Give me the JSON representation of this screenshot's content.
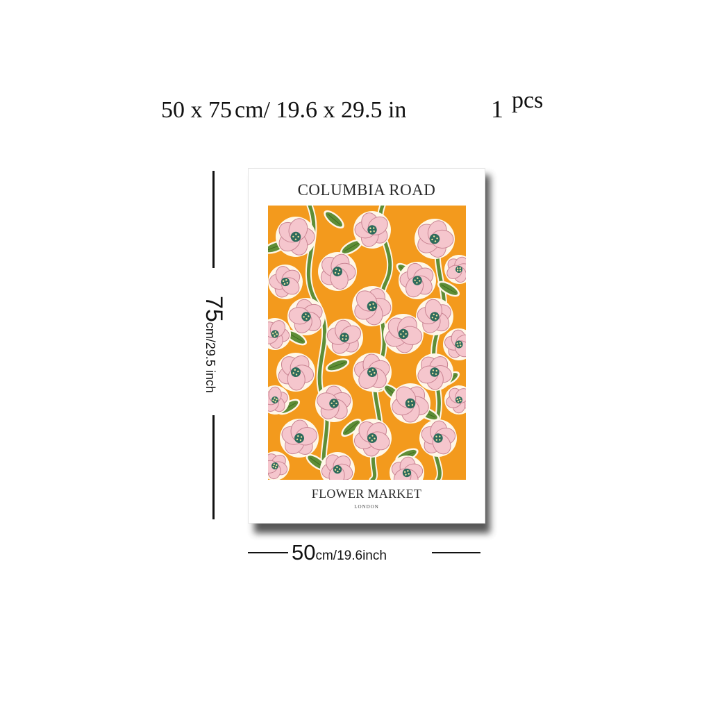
{
  "heading": {
    "part1": "50 x 75",
    "part2": "cm/ 19.6  x  29.5  in",
    "part3": "1",
    "part4": "pcs"
  },
  "poster": {
    "title": "COLUMBIA ROAD",
    "subtitle": "FLOWER MARKET",
    "city": "LONDON",
    "colors": {
      "background": "#F39A1D",
      "petal": "#F5C6CD",
      "petal_outline": "#C98493",
      "center": "#2E6B5C",
      "leaf": "#5E8E36",
      "outline": "#FFF7E8"
    }
  },
  "dimensions": {
    "height_value": "75",
    "height_unit": "cm/29.5 inch",
    "width_value": "50",
    "width_unit": "cm/19.6inch"
  }
}
